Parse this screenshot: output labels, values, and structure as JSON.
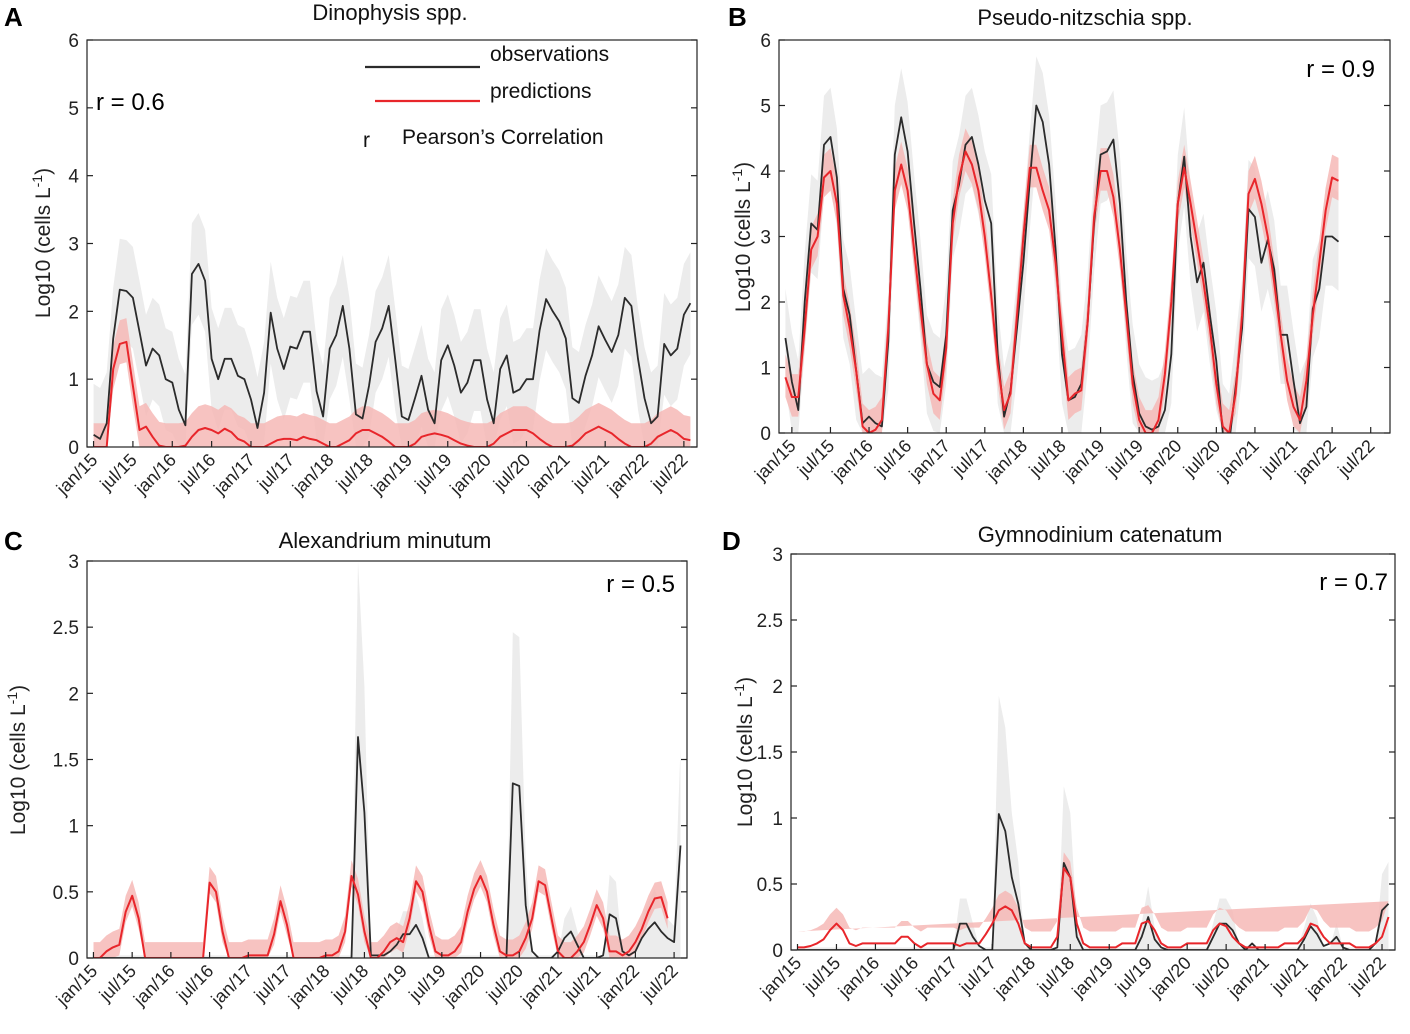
{
  "legend": {
    "observations": "observations",
    "predictions": "predictions",
    "r_symbol": "r",
    "r_label": "Pearson’s Correlation"
  },
  "colors": {
    "observations": "#2b2b2b",
    "predictions": "#e8262b",
    "obs_band": "#ececec",
    "pred_band": "#f6b9b6"
  },
  "chart_data": [
    {
      "panel": "A",
      "type": "line",
      "title": "Dinophysis spp.",
      "ylabel": "Log10 (cells L",
      "ylabel_sup": "-1",
      "ylabel_close": ")",
      "ylim": [
        0,
        6
      ],
      "yticks": [
        0,
        1,
        2,
        3,
        4,
        5,
        6
      ],
      "r_text": "r = 0.6",
      "xlabels": [
        "jan/15",
        "jul/15",
        "jan/16",
        "jul/16",
        "jan/17",
        "jul/17",
        "jan/18",
        "jul/18",
        "jan/19",
        "jul/19",
        "jan/20",
        "jul/20",
        "jan/21",
        "jul/21",
        "jan/22",
        "jul/22"
      ],
      "x_start": 0,
      "x_range": [
        -1,
        92
      ],
      "series": [
        {
          "name": "observations",
          "values": [
            0.18,
            0.12,
            0.35,
            1.6,
            2.32,
            2.3,
            2.2,
            1.7,
            1.2,
            1.45,
            1.35,
            1.0,
            0.95,
            0.55,
            0.32,
            2.55,
            2.7,
            2.45,
            1.3,
            1.0,
            1.3,
            1.3,
            1.05,
            1.0,
            0.7,
            0.28,
            0.8,
            1.98,
            1.45,
            1.15,
            1.48,
            1.45,
            1.7,
            1.7,
            0.82,
            0.45,
            1.45,
            1.65,
            2.08,
            1.45,
            0.48,
            0.42,
            0.9,
            1.55,
            1.75,
            2.08,
            1.28,
            0.45,
            0.4,
            0.72,
            1.05,
            0.55,
            0.35,
            1.28,
            1.5,
            1.2,
            0.8,
            0.95,
            1.28,
            1.28,
            0.7,
            0.35,
            1.15,
            1.35,
            0.8,
            0.85,
            1.0,
            1.0,
            1.72,
            2.18,
            2.0,
            1.85,
            1.6,
            0.72,
            0.65,
            1.05,
            1.35,
            1.78,
            1.58,
            1.4,
            1.65,
            2.2,
            2.08,
            1.3,
            0.72,
            0.35,
            0.45,
            1.52,
            1.35,
            1.45,
            1.95,
            2.12
          ]
        },
        {
          "name": "predictions",
          "values": [
            0,
            0,
            0,
            1.15,
            1.52,
            1.55,
            0.9,
            0.25,
            0.3,
            0.15,
            0.02,
            0,
            0,
            0,
            0.02,
            0.15,
            0.25,
            0.28,
            0.25,
            0.2,
            0.27,
            0.22,
            0.12,
            0.08,
            0,
            0,
            0,
            0.05,
            0.1,
            0.12,
            0.12,
            0.1,
            0.15,
            0.12,
            0.1,
            0.05,
            0,
            0,
            0.05,
            0.1,
            0.2,
            0.25,
            0.25,
            0.2,
            0.15,
            0.08,
            0,
            0,
            0,
            0.05,
            0.15,
            0.18,
            0.2,
            0.18,
            0.15,
            0.1,
            0.05,
            0.02,
            0,
            0,
            0,
            0.05,
            0.15,
            0.2,
            0.25,
            0.25,
            0.25,
            0.2,
            0.12,
            0.05,
            0,
            0,
            0,
            0.02,
            0.1,
            0.2,
            0.25,
            0.3,
            0.25,
            0.2,
            0.12,
            0.05,
            0,
            0,
            0,
            0.05,
            0.15,
            0.2,
            0.25,
            0.2,
            0.12,
            0.1
          ]
        }
      ]
    },
    {
      "panel": "B",
      "type": "line",
      "title": "Pseudo-nitzschia spp.",
      "ylabel": "Log10 (cells L",
      "ylabel_sup": "-1",
      "ylabel_close": ")",
      "ylim": [
        0,
        6
      ],
      "yticks": [
        0,
        1,
        2,
        3,
        4,
        5,
        6
      ],
      "r_text": "r = 0.9",
      "xlabels": [
        "jan/15",
        "jul/15",
        "jan/16",
        "jul/16",
        "jan/17",
        "jul/17",
        "jan/18",
        "jul/18",
        "jan/19",
        "jul/19",
        "jan/20",
        "jul/20",
        "jan/21",
        "jul/21",
        "jan/22",
        "jul/22"
      ],
      "x_start": -1,
      "x_range": [
        -2,
        93
      ],
      "series": [
        {
          "name": "observations",
          "values": [
            1.45,
            0.78,
            0.35,
            2.0,
            3.2,
            3.1,
            4.4,
            4.52,
            3.9,
            2.2,
            1.8,
            0.95,
            0.15,
            0.25,
            0.15,
            0.1,
            1.4,
            4.25,
            4.82,
            4.3,
            3.2,
            2.2,
            1.05,
            0.78,
            0.7,
            1.5,
            3.4,
            3.8,
            4.4,
            4.52,
            4.1,
            3.55,
            3.2,
            1.2,
            0.25,
            0.65,
            1.6,
            2.6,
            3.85,
            5.0,
            4.75,
            4.1,
            2.8,
            1.2,
            0.5,
            0.55,
            0.75,
            1.7,
            3.2,
            4.25,
            4.3,
            4.48,
            3.5,
            2.0,
            0.9,
            0.3,
            0.1,
            0.05,
            0.1,
            0.35,
            1.2,
            3.5,
            4.22,
            3.0,
            2.3,
            2.6,
            1.8,
            1.1,
            0,
            -0.15,
            0.7,
            1.6,
            3.42,
            3.3,
            2.6,
            2.95,
            2.5,
            1.5,
            1.5,
            0.8,
            0.15,
            0.4,
            1.9,
            2.2,
            3.0,
            3.0,
            2.92
          ]
        },
        {
          "name": "predictions",
          "values": [
            0.85,
            0.55,
            0.55,
            1.6,
            2.8,
            3.0,
            3.9,
            4.0,
            3.5,
            2.1,
            1.6,
            0.95,
            0.1,
            0,
            0.05,
            0.2,
            1.6,
            3.7,
            4.1,
            3.7,
            2.8,
            1.9,
            1.05,
            0.6,
            0.5,
            1.3,
            3.2,
            3.9,
            4.3,
            4.1,
            3.7,
            3.0,
            2.1,
            1.05,
            0.35,
            0.6,
            1.8,
            3.0,
            4.05,
            4.05,
            3.7,
            3.4,
            2.6,
            1.5,
            0.5,
            0.6,
            0.65,
            1.7,
            3.3,
            4.0,
            4.0,
            3.6,
            2.8,
            1.8,
            0.75,
            0.2,
            0,
            0,
            0.2,
            0.9,
            2.0,
            3.5,
            4.05,
            3.5,
            2.9,
            2.3,
            1.6,
            0.75,
            0.1,
            0,
            0.6,
            1.8,
            3.65,
            3.88,
            3.5,
            3.0,
            2.3,
            1.5,
            0.8,
            0.4,
            0.2,
            0.8,
            1.8,
            2.6,
            3.4,
            3.9,
            3.85
          ]
        }
      ]
    },
    {
      "panel": "C",
      "type": "line",
      "title": "Alexandrium minutum",
      "ylabel": "Log10 (cells L",
      "ylabel_sup": "-1",
      "ylabel_close": ")",
      "ylim": [
        0,
        3
      ],
      "yticks": [
        0,
        0.5,
        1,
        1.5,
        2,
        2.5,
        3
      ],
      "r_text": "r = 0.5",
      "xlabels": [
        "jan/15",
        "jul/15",
        "jan/16",
        "jul/16",
        "jan/17",
        "jul/17",
        "jan/18",
        "jul/18",
        "jan/19",
        "jul/19",
        "jan/20",
        "jul/20",
        "jan/21",
        "jul/21",
        "jan/22",
        "jul/22"
      ],
      "x_start": 0,
      "x_range": [
        -1,
        92
      ],
      "series": [
        {
          "name": "observations",
          "values": [
            0,
            0,
            0,
            0,
            0,
            0,
            0,
            0,
            0,
            0,
            0,
            0,
            0,
            0,
            0,
            0,
            0,
            0,
            0,
            0,
            0,
            0,
            0,
            0,
            0,
            0,
            0,
            0,
            0,
            0,
            0,
            0,
            0,
            0,
            0,
            0,
            0,
            0,
            0,
            0,
            0,
            1.67,
            1.1,
            0.02,
            0.02,
            0.02,
            0.05,
            0.1,
            0.18,
            0.18,
            0.25,
            0.15,
            0,
            0,
            0,
            0,
            0,
            0,
            0,
            0,
            0,
            0,
            0,
            0,
            0,
            1.32,
            1.3,
            0.4,
            0.05,
            0,
            0,
            0,
            0.05,
            0.15,
            0.2,
            0.1,
            0,
            0,
            0,
            0.02,
            0.33,
            0.3,
            0.05,
            0.02,
            0.05,
            0.15,
            0.22,
            0.27,
            0.2,
            0.15,
            0.12,
            0.85
          ]
        },
        {
          "name": "predictions",
          "values": [
            0,
            0,
            0.05,
            0.08,
            0.1,
            0.35,
            0.47,
            0.3,
            0,
            0,
            0,
            0,
            0,
            0,
            0,
            0,
            0,
            0,
            0.57,
            0.5,
            0.2,
            0,
            0,
            0,
            0.02,
            0.02,
            0.02,
            0.02,
            0.18,
            0.43,
            0.25,
            0,
            0,
            0,
            0,
            0,
            0.02,
            0.02,
            0.05,
            0.2,
            0.62,
            0.48,
            0.2,
            0,
            0,
            0.05,
            0.12,
            0.15,
            0.12,
            0.3,
            0.58,
            0.5,
            0.25,
            0.05,
            0.02,
            0.02,
            0.05,
            0.12,
            0.35,
            0.52,
            0.62,
            0.5,
            0.25,
            0.05,
            0.02,
            0.02,
            0.05,
            0.15,
            0.3,
            0.58,
            0.55,
            0.3,
            0.05,
            0,
            0,
            0.05,
            0.12,
            0.25,
            0.4,
            0.3,
            0.05,
            0.05,
            0.02,
            0.05,
            0.12,
            0.22,
            0.35,
            0.45,
            0.46,
            0.3
          ]
        }
      ]
    },
    {
      "panel": "D",
      "type": "line",
      "title": "Gymnodinium catenatum",
      "ylabel": "Log10 (cells L",
      "ylabel_sup": "-1",
      "ylabel_close": ")",
      "ylim": [
        0,
        3
      ],
      "yticks": [
        0,
        0.5,
        1,
        1.5,
        2,
        2.5,
        3
      ],
      "r_text": "r = 0.7",
      "xlabels": [
        "jan/15",
        "jul/15",
        "jan/16",
        "jul/16",
        "jan/17",
        "jul/17",
        "jan/18",
        "jul/18",
        "jan/19",
        "jul/19",
        "jan/20",
        "jul/20",
        "jan/21",
        "jul/21",
        "jan/22",
        "jul/22"
      ],
      "x_start": 0,
      "x_range": [
        -1,
        92
      ],
      "series": [
        {
          "name": "observations",
          "values": [
            0,
            0,
            0,
            0,
            0,
            0,
            0,
            0,
            0,
            0,
            0,
            0,
            0,
            0,
            0,
            0,
            0,
            0,
            0,
            0,
            0,
            0,
            0,
            0,
            0,
            0.2,
            0.2,
            0.1,
            0.03,
            0,
            0,
            1.03,
            0.9,
            0.55,
            0.35,
            0.05,
            0,
            0,
            0,
            0,
            0.02,
            0.66,
            0.55,
            0.1,
            0,
            0,
            0,
            0,
            0,
            0,
            0,
            0,
            0,
            0.1,
            0.25,
            0.08,
            0.02,
            0,
            0,
            0,
            0,
            0,
            0,
            0,
            0.1,
            0.2,
            0.2,
            0.15,
            0.05,
            0,
            0.05,
            0,
            0,
            0,
            0,
            0,
            0,
            0,
            0.08,
            0.18,
            0.12,
            0.03,
            0.05,
            0.1,
            0.02,
            0,
            0,
            0,
            0,
            0.05,
            0.3,
            0.35
          ]
        },
        {
          "name": "predictions",
          "values": [
            0.02,
            0.02,
            0.03,
            0.05,
            0.08,
            0.15,
            0.2,
            0.15,
            0.05,
            0.03,
            0.05,
            0.05,
            0.05,
            0.05,
            0.05,
            0.05,
            0.1,
            0.1,
            0.05,
            0.02,
            0.05,
            0.05,
            0.05,
            0.05,
            0.05,
            0.03,
            0.05,
            0.05,
            0.05,
            0.12,
            0.2,
            0.3,
            0.33,
            0.3,
            0.2,
            0.05,
            0.02,
            0.02,
            0.02,
            0.02,
            0.1,
            0.62,
            0.55,
            0.2,
            0.05,
            0.02,
            0.02,
            0.02,
            0.02,
            0.02,
            0.05,
            0.05,
            0.05,
            0.2,
            0.22,
            0.15,
            0.05,
            0.02,
            0.02,
            0.02,
            0.05,
            0.05,
            0.05,
            0.05,
            0.15,
            0.2,
            0.18,
            0.1,
            0.05,
            0.02,
            0.02,
            0.02,
            0.02,
            0.02,
            0.02,
            0.05,
            0.05,
            0.05,
            0.1,
            0.2,
            0.18,
            0.1,
            0.05,
            0.05,
            0.05,
            0.05,
            0.02,
            0.02,
            0.02,
            0.05,
            0.1,
            0.25,
            0.33
          ]
        }
      ]
    }
  ]
}
